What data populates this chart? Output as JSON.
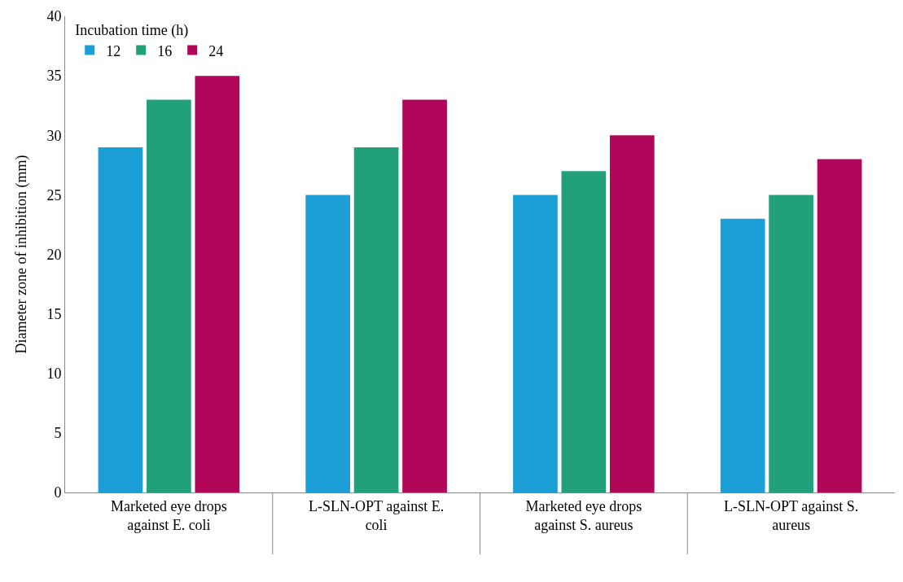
{
  "chart_data": {
    "type": "bar",
    "ylabel": "Diameter zone of inhibition (mm)",
    "legend_title": "Incubation time (h)",
    "categories": [
      "Marketed eye drops against E. coli",
      "L-SLN-OPT against E. coli",
      "Marketed eye drops against S. aureus",
      "L-SLN-OPT against S. aureus"
    ],
    "series": [
      {
        "name": "12",
        "color": "#1c9fd6",
        "values": [
          29,
          25,
          25,
          23
        ]
      },
      {
        "name": "16",
        "color": "#21a07a",
        "values": [
          33,
          29,
          27,
          25
        ]
      },
      {
        "name": "24",
        "color": "#b0075a",
        "values": [
          35,
          33,
          30,
          28
        ]
      }
    ],
    "ylim": [
      0,
      40
    ],
    "yticks": [
      0,
      5,
      10,
      15,
      20,
      25,
      30,
      35,
      40
    ],
    "grid": false,
    "legend": "top left"
  }
}
